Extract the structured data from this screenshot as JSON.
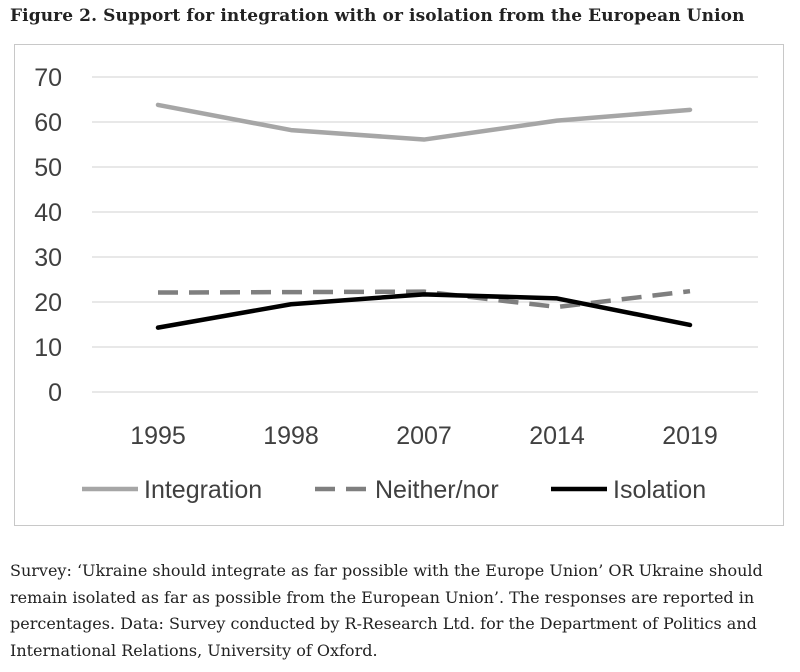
{
  "figure_title": "Figure 2.  Support for integration with or isolation from the European Union",
  "caption": "Survey: ‘Ukraine should integrate as far possible with the Europe Union’ OR Ukraine should remain isolated as far as possible from the European Union’. The responses are reported in percentages. Data: Survey conducted by R-Research Ltd. for the Department of Politics and International Relations, University of Oxford.",
  "chart_data": {
    "type": "line",
    "title": "",
    "xlabel": "",
    "ylabel": "",
    "categories": [
      "1995",
      "1998",
      "2007",
      "2014",
      "2019"
    ],
    "ylim": [
      0,
      70
    ],
    "yticks": [
      0,
      10,
      20,
      30,
      40,
      50,
      60,
      70
    ],
    "grid": true,
    "legend_position": "bottom",
    "series": [
      {
        "name": "Integration",
        "values": [
          63.8,
          58.2,
          56.1,
          60.3,
          62.7
        ],
        "color": "#a6a6a6",
        "style": "solid"
      },
      {
        "name": "Neither/nor",
        "values": [
          22.1,
          22.2,
          22.3,
          18.9,
          22.4
        ],
        "color": "#7f7f7f",
        "style": "dashed"
      },
      {
        "name": "Isolation",
        "values": [
          14.3,
          19.5,
          21.7,
          20.8,
          14.9
        ],
        "color": "#000000",
        "style": "solid"
      }
    ]
  }
}
